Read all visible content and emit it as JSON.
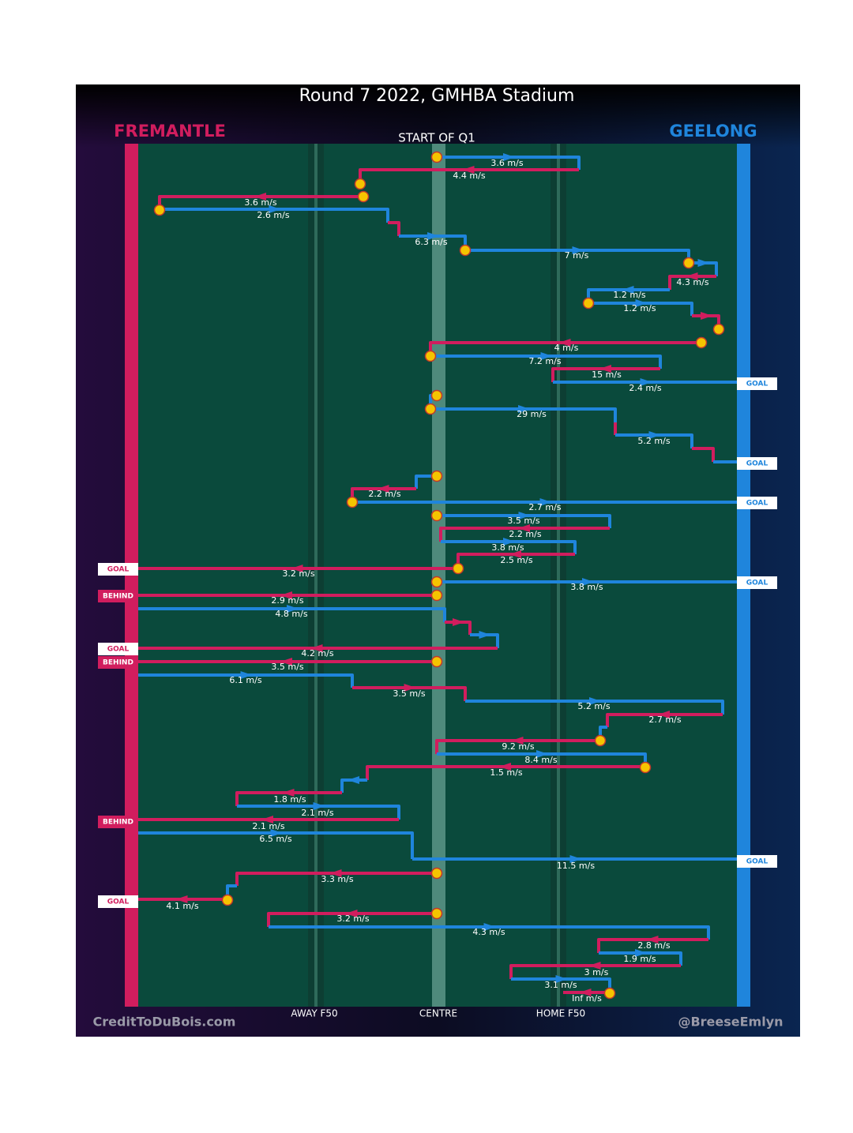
{
  "header": {
    "title": "Round 7 2022, GMHBA Stadium",
    "home_team": "FREMANTLE",
    "away_team": "GEELONG",
    "start": "START OF Q1"
  },
  "kicks": [
    "3.6 m/s",
    "4.4 m/s",
    "3.6 m/s",
    "2.6 m/s",
    "6.3 m/s",
    "7 m/s",
    "4.3 m/s",
    "1.2 m/s",
    "1.2 m/s",
    "4 m/s",
    "7.2 m/s",
    "15 m/s",
    "2.4 m/s",
    "29 m/s",
    "5.2 m/s",
    "2.2 m/s",
    "2.7 m/s",
    "3.5 m/s",
    "2.2 m/s",
    "3.8 m/s",
    "2.5 m/s",
    "3.2 m/s",
    "3.8 m/s",
    "2.9 m/s",
    "4.8 m/s",
    "4.2 m/s",
    "3.5 m/s",
    "6.1 m/s",
    "3.5 m/s",
    "5.2 m/s",
    "2.7 m/s",
    "9.2 m/s",
    "8.4 m/s",
    "1.5 m/s",
    "1.8 m/s",
    "2.1 m/s",
    "2.1 m/s",
    "6.5 m/s",
    "11.5 m/s",
    "3.3 m/s",
    "4.1 m/s",
    "3.2 m/s",
    "4.3 m/s",
    "2.8 m/s",
    "1.9 m/s",
    "3 m/s",
    "3.1 m/s",
    "Inf m/s"
  ],
  "outcomes": [
    "GOAL",
    "GOAL",
    "GOAL",
    "GOAL",
    "GOAL",
    "BEHIND",
    "GOAL",
    "BEHIND",
    "BEHIND",
    "GOAL",
    "GOAL"
  ],
  "field_labels": [
    "AWAY F50",
    "CENTRE",
    "HOME F50"
  ],
  "footer": {
    "left": "CreditToDuBois.com",
    "right": "@BreeseEmlyn"
  }
}
